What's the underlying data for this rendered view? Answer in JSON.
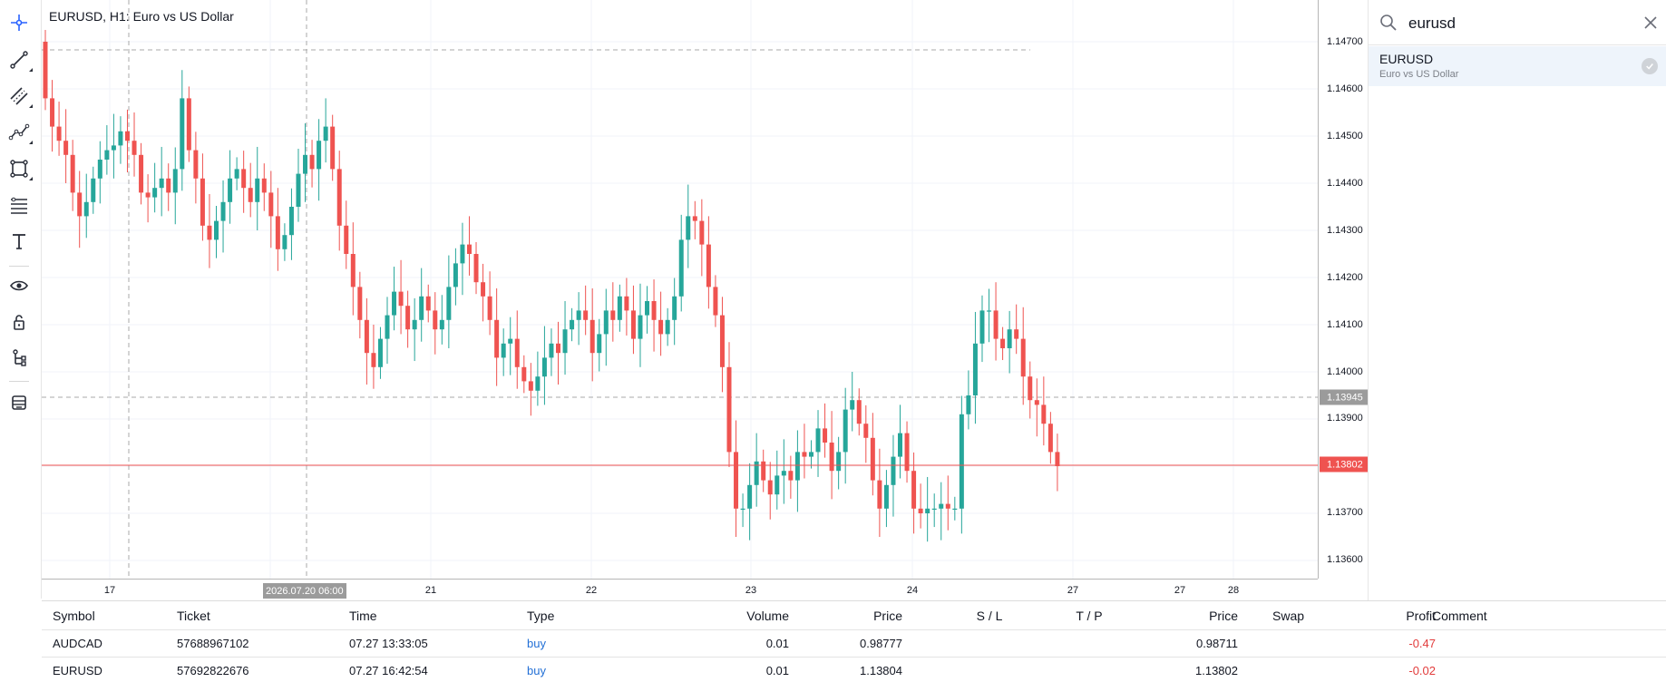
{
  "chart": {
    "title": "EURUSD, H1: Euro vs US Dollar",
    "price_ticks": [
      "1.14700",
      "1.14600",
      "1.14500",
      "1.14400",
      "1.14300",
      "1.14200",
      "1.14100",
      "1.14000",
      "1.13900",
      "1.13700",
      "1.13600"
    ],
    "time_ticks": [
      "17",
      "21",
      "22",
      "23",
      "24",
      "27",
      "27",
      "28"
    ],
    "crosshair_time": "2026.07.20 06:00",
    "crosshair_price": "1.13945",
    "current_price": "1.13802",
    "colors": {
      "bull": "#26a69a",
      "bear": "#ef5350",
      "current_line": "#ef5350",
      "crosshair_tag": "#9b9b9b"
    }
  },
  "chart_data": {
    "type": "candlestick",
    "symbol": "EURUSD",
    "timeframe": "H1",
    "ylim": [
      1.1355,
      1.1475
    ],
    "closes": [
      1.1458,
      1.1452,
      1.1449,
      1.1446,
      1.1438,
      1.1433,
      1.1436,
      1.1441,
      1.1445,
      1.1447,
      1.1448,
      1.1451,
      1.1449,
      1.1446,
      1.1438,
      1.1437,
      1.1439,
      1.1441,
      1.1438,
      1.1443,
      1.1458,
      1.1447,
      1.1441,
      1.1431,
      1.1428,
      1.1432,
      1.1436,
      1.1441,
      1.1443,
      1.1439,
      1.1436,
      1.1441,
      1.1438,
      1.1433,
      1.1426,
      1.1429,
      1.1435,
      1.1442,
      1.1446,
      1.1443,
      1.1449,
      1.1452,
      1.1443,
      1.1431,
      1.1425,
      1.1418,
      1.1411,
      1.1404,
      1.1401,
      1.1407,
      1.1412,
      1.1417,
      1.1414,
      1.1409,
      1.1411,
      1.1416,
      1.1413,
      1.1409,
      1.1411,
      1.1418,
      1.1423,
      1.1427,
      1.1425,
      1.1419,
      1.1416,
      1.1411,
      1.1403,
      1.1406,
      1.1407,
      1.1401,
      1.1398,
      1.1396,
      1.1399,
      1.1403,
      1.1406,
      1.1404,
      1.1409,
      1.1411,
      1.1413,
      1.1411,
      1.1404,
      1.1408,
      1.1413,
      1.1411,
      1.1416,
      1.1413,
      1.1407,
      1.1412,
      1.1415,
      1.1411,
      1.1408,
      1.1411,
      1.1416,
      1.1428,
      1.1433,
      1.1432,
      1.1427,
      1.1418,
      1.1412,
      1.1401,
      1.1383,
      1.1371,
      1.1371,
      1.1376,
      1.1381,
      1.1377,
      1.1374,
      1.1378,
      1.1379,
      1.1377,
      1.1383,
      1.1382,
      1.1383,
      1.1388,
      1.1385,
      1.1379,
      1.1383,
      1.1392,
      1.1394,
      1.1389,
      1.1386,
      1.1377,
      1.1371,
      1.1376,
      1.1382,
      1.1387,
      1.1379,
      1.1371,
      1.137,
      1.1371,
      1.1371,
      1.1372,
      1.1371,
      1.1371,
      1.1391,
      1.1395,
      1.1406,
      1.1413,
      1.1413,
      1.1407,
      1.1405,
      1.1409,
      1.1407,
      1.1399,
      1.1394,
      1.1393,
      1.1389,
      1.1383,
      1.138
    ]
  },
  "search": {
    "value": "eurusd",
    "placeholder": "",
    "result_symbol": "EURUSD",
    "result_description": "Euro vs US Dollar"
  },
  "table": {
    "headers": {
      "symbol": "Symbol",
      "ticket": "Ticket",
      "time": "Time",
      "type": "Type",
      "volume": "Volume",
      "price": "Price",
      "sl": "S / L",
      "tp": "T / P",
      "price2": "Price",
      "swap": "Swap",
      "profit": "Profit",
      "comment": "Comment"
    },
    "rows": [
      {
        "symbol": "AUDCAD",
        "ticket": "57688967102",
        "time": "07.27 13:33:05",
        "type": "buy",
        "volume": "0.01",
        "price": "0.98777",
        "sl": "",
        "tp": "",
        "price2": "0.98711",
        "swap": "",
        "profit": "-0.47",
        "comment": ""
      },
      {
        "symbol": "EURUSD",
        "ticket": "57692822676",
        "time": "07.27 16:42:54",
        "type": "buy",
        "volume": "0.01",
        "price": "1.13804",
        "sl": "",
        "tp": "",
        "price2": "1.13802",
        "swap": "",
        "profit": "-0.02",
        "comment": ""
      }
    ]
  },
  "toolbar": {
    "icons": [
      "crosshair-icon",
      "trend-line-icon",
      "parallel-channel-icon",
      "polyline-icon",
      "rectangle-icon",
      "fibonacci-icon",
      "text-icon",
      "eye-icon",
      "lock-icon",
      "object-tree-icon",
      "layers-icon"
    ]
  }
}
